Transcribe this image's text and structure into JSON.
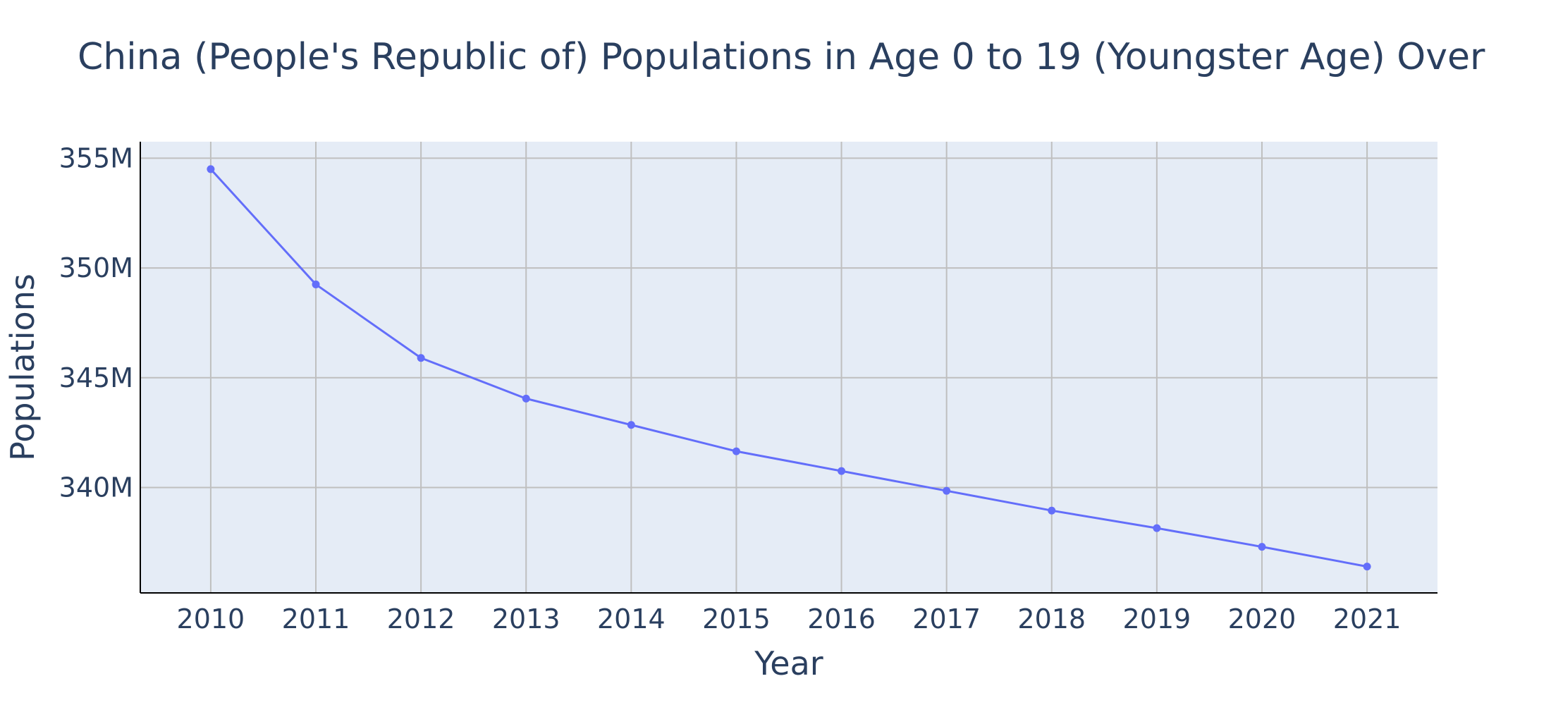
{
  "colors": {
    "plot_background": "#e5ecf6",
    "grid": "#bfbfbf",
    "axis_line": "#000000",
    "series_line": "#636efa",
    "text": "#2a3f5f"
  },
  "chart_data": {
    "type": "line",
    "title": "China (People's Republic of) Populations in Age 0 to 19 (Youngster Age) Over",
    "xlabel": "Year",
    "ylabel": "Populations",
    "x": [
      2010,
      2011,
      2012,
      2013,
      2014,
      2015,
      2016,
      2017,
      2018,
      2019,
      2020,
      2021
    ],
    "series": [
      {
        "values": [
          354500000,
          349250000,
          345900000,
          344050000,
          342850000,
          341650000,
          340750000,
          339850000,
          338950000,
          338150000,
          337300000,
          336400000
        ],
        "mode": "lines+markers"
      }
    ],
    "xlim": [
      2009.33,
      2021.67
    ],
    "ylim": [
      335200000,
      355750000
    ],
    "y_ticks": [
      340000000,
      345000000,
      350000000,
      355000000
    ],
    "y_tick_labels": [
      "340M",
      "345M",
      "350M",
      "355M"
    ],
    "x_tick_labels": [
      "2010",
      "2011",
      "2012",
      "2013",
      "2014",
      "2015",
      "2016",
      "2017",
      "2018",
      "2019",
      "2020",
      "2021"
    ],
    "grid": true,
    "legend": "none"
  }
}
